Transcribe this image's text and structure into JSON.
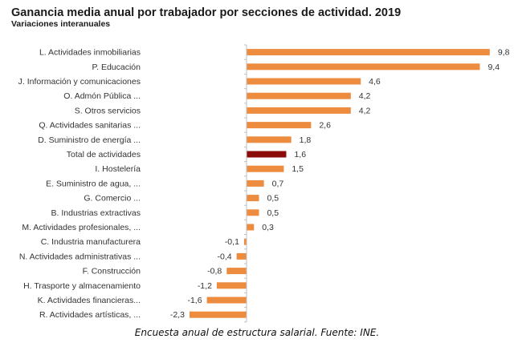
{
  "chart_data": {
    "type": "bar",
    "orientation": "horizontal",
    "title": "Ganancia media anual por trabajador por secciones de actividad. 2019",
    "subtitle": "Variaciones interanuales",
    "xlabel": "",
    "ylabel": "",
    "grid": false,
    "legend": null,
    "xlim": [
      -2.3,
      9.8
    ],
    "colors": {
      "default": "#ED8B3F",
      "highlight": "#8B0A0A"
    },
    "categories": [
      "L. Actividades inmobiliarias",
      "P. Educación",
      "J. Información y comunicaciones",
      "O. Admón Pública ...",
      "S. Otros servicios",
      "Q. Actividades sanitarias ...",
      "D. Suministro de energía ...",
      "Total de actividades",
      "I. Hostelería",
      "E. Suministro de agua, ...",
      "G. Comercio ...",
      "B. Industrias extractivas",
      "M. Actividades profesionales, ...",
      "C. Industria manufacturera",
      "N. Actividades administrativas ...",
      "F. Construcción",
      "H. Trasporte y almacenamiento",
      "K. Actividades financieras...",
      "R. Actividades artísticas, ..."
    ],
    "values": [
      9.8,
      9.4,
      4.6,
      4.2,
      4.2,
      2.6,
      1.8,
      1.6,
      1.5,
      0.7,
      0.5,
      0.5,
      0.3,
      -0.1,
      -0.4,
      -0.8,
      -1.2,
      -1.6,
      -2.3
    ],
    "value_labels": [
      "9,8",
      "9,4",
      "4,6",
      "4,2",
      "4,2",
      "2,6",
      "1,8",
      "1,6",
      "1,5",
      "0,7",
      "0,5",
      "0,5",
      "0,3",
      "-0,1",
      "-0,4",
      "-0,8",
      "-1,2",
      "-1,6",
      "-2,3"
    ],
    "highlight_category": "Total de actividades"
  },
  "caption": "Encuesta anual de estructura salarial. Fuente: INE."
}
